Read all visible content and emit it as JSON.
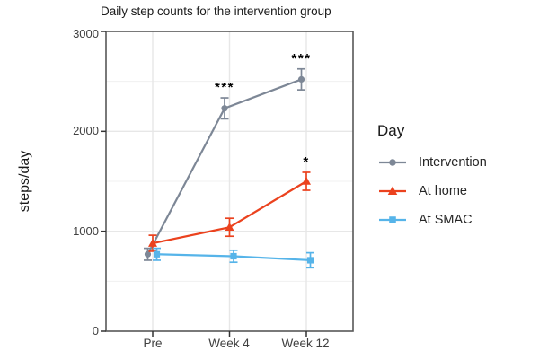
{
  "chart_data": {
    "type": "line",
    "title": "Daily step counts for the intervention group",
    "xlabel": "",
    "ylabel": "steps/day",
    "ylim": [
      0,
      3000
    ],
    "ytick_values": [
      0,
      1000,
      2000,
      3000
    ],
    "yticks": [
      "0",
      "1000",
      "2000",
      "3000"
    ],
    "minor_grid_step": 500,
    "grid": true,
    "categories": [
      "Pre",
      "Week 4",
      "Week 12"
    ],
    "legend_title": "Day",
    "legend_position": "right",
    "series": [
      {
        "name": "Intervention",
        "color": "#7d8796",
        "marker": "circle",
        "values": [
          770,
          2230,
          2520
        ],
        "errors": [
          60,
          105,
          105
        ],
        "annotations": [
          "",
          "***",
          "***"
        ]
      },
      {
        "name": "At home",
        "color": "#eb421e",
        "marker": "triangle",
        "values": [
          880,
          1040,
          1500
        ],
        "errors": [
          80,
          90,
          90
        ],
        "annotations": [
          "",
          "",
          "*"
        ]
      },
      {
        "name": "At SMAC",
        "color": "#56b4e9",
        "marker": "square",
        "values": [
          770,
          750,
          710
        ],
        "errors": [
          60,
          60,
          75
        ],
        "annotations": [
          "",
          "",
          ""
        ]
      }
    ]
  }
}
